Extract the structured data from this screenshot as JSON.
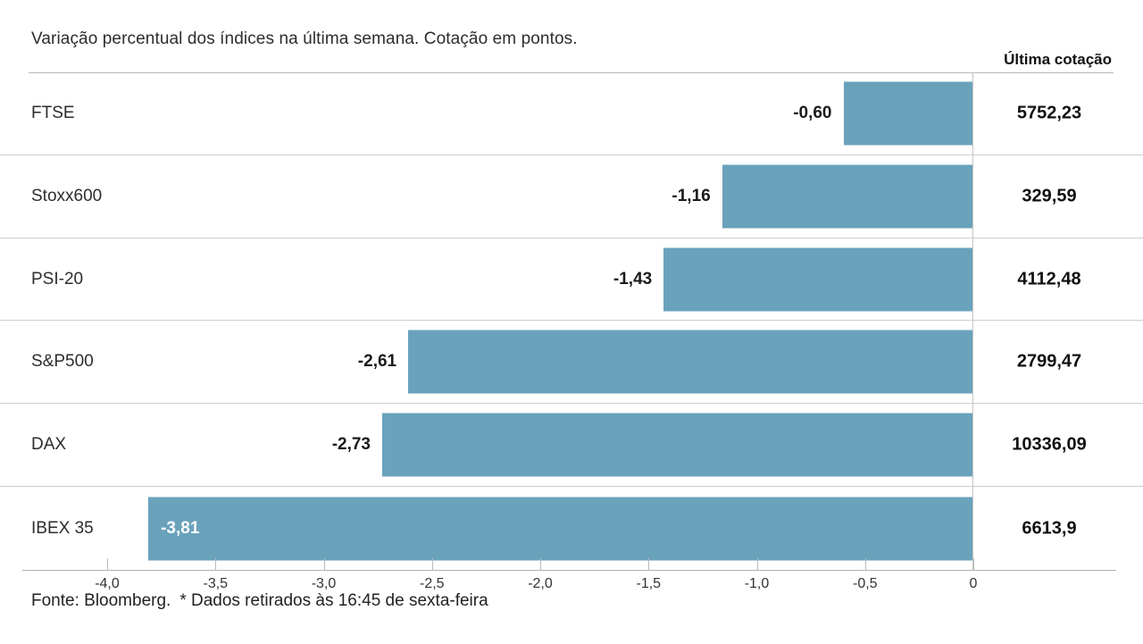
{
  "chart_data": {
    "type": "bar",
    "orientation": "horizontal",
    "title": "Variação percentual dos índices na última semana. Cotação em pontos.",
    "value_column_header": "Última cotação",
    "categories": [
      "FTSE",
      "Stoxx600",
      "PSI-20",
      "S&P500",
      "DAX",
      "IBEX 35"
    ],
    "values": [
      -0.6,
      -1.16,
      -1.43,
      -2.61,
      -2.73,
      -3.81
    ],
    "value_labels": [
      "-0,60",
      "-1,16",
      "-1,43",
      "-2,61",
      "-2,73",
      "-3,81"
    ],
    "last_quotes": [
      "5752,23",
      "329,59",
      "4112,48",
      "2799,47",
      "10336,09",
      "6613,9"
    ],
    "xlim": [
      -4.35,
      0
    ],
    "xticks": [
      -4.0,
      -3.5,
      -3.0,
      -2.5,
      -2.0,
      -1.5,
      -1.0,
      -0.5,
      0
    ],
    "xtick_labels": [
      "-4,0",
      "-3,5",
      "-3,0",
      "-2,5",
      "-2,0",
      "-1,5",
      "-1,0",
      "-0,5",
      "0"
    ],
    "bar_color": "#6AA2BB",
    "grid": false,
    "legend": false
  },
  "footer": {
    "source": "Fonte: Bloomberg.",
    "footnote": "* Dados retirados às 16:45 de sexta-feira"
  }
}
